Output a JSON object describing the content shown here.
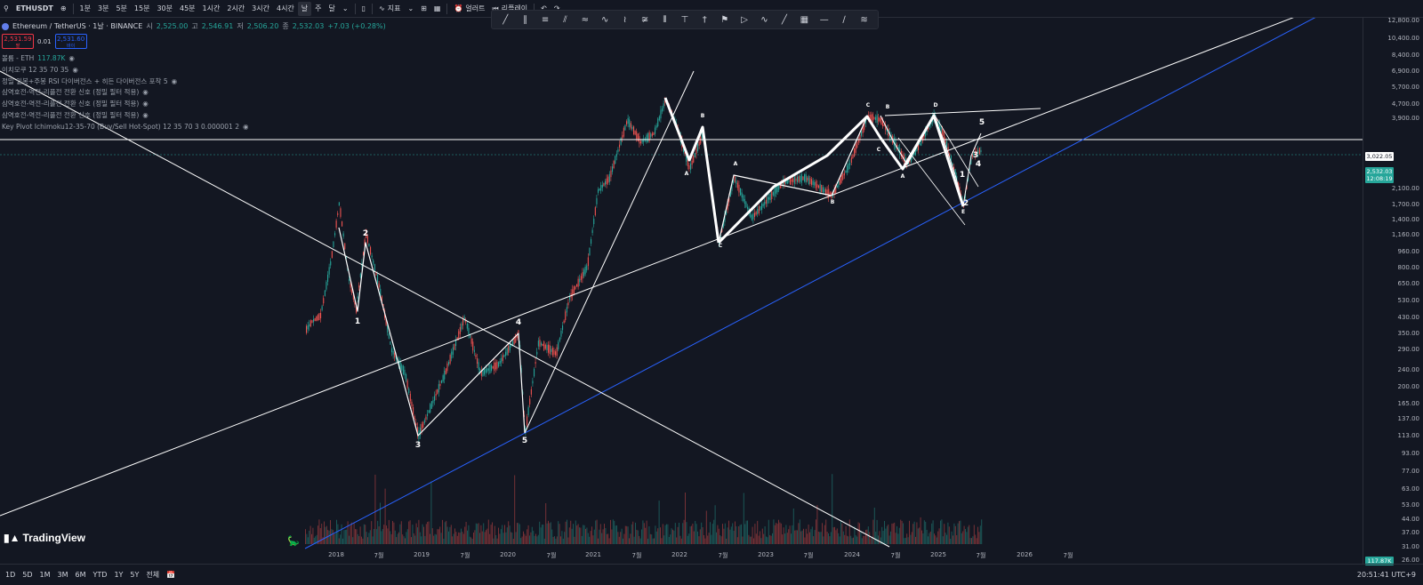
{
  "topbar": {
    "symbol": "ETHUSDT",
    "intervals": [
      "1분",
      "3분",
      "5분",
      "15분",
      "30분",
      "45분",
      "1시간",
      "2시간",
      "3시간",
      "4시간",
      "날",
      "주",
      "달"
    ],
    "active_interval": "날",
    "indicators_label": "지표",
    "alert_label": "얼러트",
    "replay_label": "리플레이"
  },
  "legend": {
    "pair": "Ethereum / TetherUS · 1날 · BINANCE",
    "open_label": "시",
    "open": "2,525.00",
    "high_label": "고",
    "high": "2,546.91",
    "low_label": "저",
    "low": "2,506.20",
    "close_label": "종",
    "close": "2,532.03",
    "change": "+7.03 (+0.28%)",
    "sell_price": "2,531.59",
    "sell_label": "팔",
    "buy_price": "2,531.60",
    "buy_label": "바이",
    "spread": "0.01"
  },
  "indicators": [
    {
      "label": "볼륨 - ETH",
      "value": "117.87K"
    },
    {
      "label": "이치모쿠 12 35 70 35",
      "value": ""
    },
    {
      "label": "정밀 일봉+주봉 RSI 다이버전스 + 히든 다이버전스 포착 5",
      "value": ""
    },
    {
      "label": "삼역호전-역전-리플전 전환 신호 (정밀 필터 적용)",
      "value": ""
    },
    {
      "label": "삼역호전-역전-리플전 전환 신호 (정밀 필터 적용)",
      "value": ""
    },
    {
      "label": "삼역호전-역전-리플전 전환 신호 (정밀 필터 적용)",
      "value": ""
    },
    {
      "label": "Key Pivot Ichimoku12-35-70 (Buy/Sell Hot-Spot) 12 35 70 3 0.000001 2",
      "value": ""
    }
  ],
  "price_axis": {
    "ticks": [
      "12,800.00",
      "10,400.00",
      "8,400.00",
      "6,900.00",
      "5,700.00",
      "4,700.00",
      "3,900.00",
      "2,100.00",
      "1,700.00",
      "1,400.00",
      "1,160.00",
      "960.00",
      "800.00",
      "650.00",
      "530.00",
      "430.00",
      "350.00",
      "290.00",
      "240.00",
      "200.00",
      "165.00",
      "137.00",
      "113.00",
      "93.00",
      "77.00",
      "63.00",
      "53.00",
      "44.00",
      "37.00",
      "31.00",
      "26.00"
    ],
    "hline_price": "3,022.05",
    "last_price": "2,532.03",
    "countdown": "12:08:19",
    "volume_label": "117.87K"
  },
  "time_axis": {
    "labels": [
      "2018",
      "7월",
      "2019",
      "7월",
      "2020",
      "7월",
      "2021",
      "7월",
      "2022",
      "7월",
      "2023",
      "7월",
      "2024",
      "7월",
      "2025",
      "7월",
      "2026",
      "7월"
    ]
  },
  "wave_labels": [
    "1",
    "2",
    "3",
    "4",
    "5",
    "A",
    "B",
    "C",
    "A",
    "B",
    "C",
    "A",
    "B",
    "C",
    "D",
    "E",
    "1",
    "2",
    "3",
    "4",
    "5"
  ],
  "bottombar": {
    "ranges": [
      "1D",
      "5D",
      "1M",
      "3M",
      "6M",
      "YTD",
      "1Y",
      "5Y",
      "전체"
    ],
    "clock": "20:51:41 UTC+9"
  },
  "logo": "TradingView",
  "colors": {
    "background": "#131722",
    "up": "#26a69a",
    "down": "#ef5350",
    "trendline_blue": "#2962ff",
    "trendline_white": "#ffffff"
  }
}
